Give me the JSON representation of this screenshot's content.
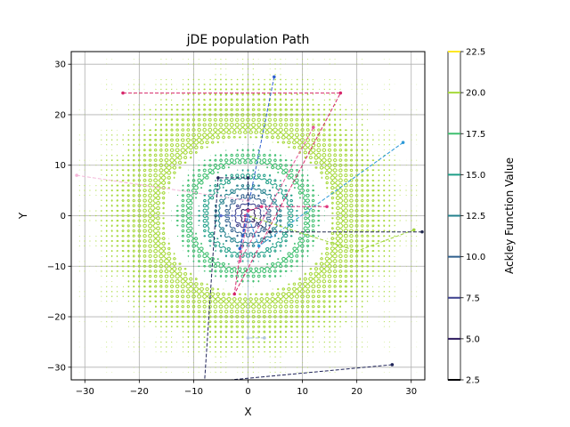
{
  "chart_data": {
    "type": "line",
    "title": "jDE population Path",
    "xlabel": "X",
    "ylabel": "Y",
    "xlim": [
      -32.5,
      32.5
    ],
    "ylim": [
      -32.5,
      32.5
    ],
    "xticks": [
      -30,
      -20,
      -10,
      0,
      10,
      20,
      30
    ],
    "yticks": [
      -30,
      -20,
      -10,
      0,
      10,
      20,
      30
    ],
    "grid": true,
    "contour_function": "Ackley",
    "contour_levels": [
      2.5,
      5.0,
      7.5,
      10.0,
      12.5,
      15.0,
      17.5,
      20.0,
      22.5
    ],
    "colorbar": {
      "label": "Ackley Function Value",
      "ticks": [
        2.5,
        5.0,
        7.5,
        10.0,
        12.5,
        15.0,
        17.5,
        20.0,
        22.5
      ],
      "tick_labels": [
        "2.5",
        "5.0",
        "7.5",
        "10.0",
        "12.5",
        "15.0",
        "17.5",
        "20.0",
        "22.5"
      ],
      "colors": [
        "#000004",
        "#2d1a5e",
        "#3b3f8c",
        "#2f5f8c",
        "#22808c",
        "#1e9e86",
        "#3fbf6f",
        "#a6d93a",
        "#fde725"
      ]
    },
    "paths": [
      {
        "color": "#d6266a",
        "points": [
          [
            -23,
            24.3
          ],
          [
            17,
            24.3
          ],
          [
            -2.5,
            -15.5
          ],
          [
            -0.5,
            0
          ]
        ]
      },
      {
        "color": "#e85a9a",
        "points": [
          [
            12,
            17.5
          ],
          [
            -1.5,
            -9
          ],
          [
            0,
            0
          ]
        ]
      },
      {
        "color": "#2e5fcf",
        "points": [
          [
            4.8,
            27.5
          ],
          [
            -1.5,
            -6.5
          ],
          [
            0,
            0
          ]
        ]
      },
      {
        "color": "#2d9ad8",
        "points": [
          [
            28.5,
            14.5
          ],
          [
            2,
            -6
          ],
          [
            0,
            0
          ]
        ]
      },
      {
        "color": "#f4b6d8",
        "points": [
          [
            -31.5,
            8
          ],
          [
            0,
            3
          ],
          [
            0,
            0
          ]
        ]
      },
      {
        "color": "#9ed43a",
        "points": [
          [
            30.5,
            -2.8
          ],
          [
            20,
            -7
          ],
          [
            0,
            0
          ]
        ]
      },
      {
        "color": "#232a4f",
        "points": [
          [
            32,
            -3.2
          ],
          [
            4,
            -3.2
          ],
          [
            0,
            0
          ]
        ]
      },
      {
        "color": "#1f2459",
        "points": [
          [
            26.5,
            -29.5
          ],
          [
            -8,
            -33
          ],
          [
            -5.5,
            7.5
          ],
          [
            0,
            7.5
          ],
          [
            0,
            1
          ]
        ]
      },
      {
        "color": "#e0387e",
        "points": [
          [
            14.5,
            1.8
          ],
          [
            2.5,
            1.8
          ],
          [
            0,
            1
          ]
        ]
      },
      {
        "color": "#b0c4de",
        "points": [
          [
            3,
            -24.2
          ],
          [
            0,
            -24.2
          ],
          [
            0,
            0
          ]
        ]
      },
      {
        "color": "#5a6ec8",
        "points": [
          [
            -5,
            0
          ],
          [
            0,
            0
          ]
        ]
      }
    ]
  }
}
